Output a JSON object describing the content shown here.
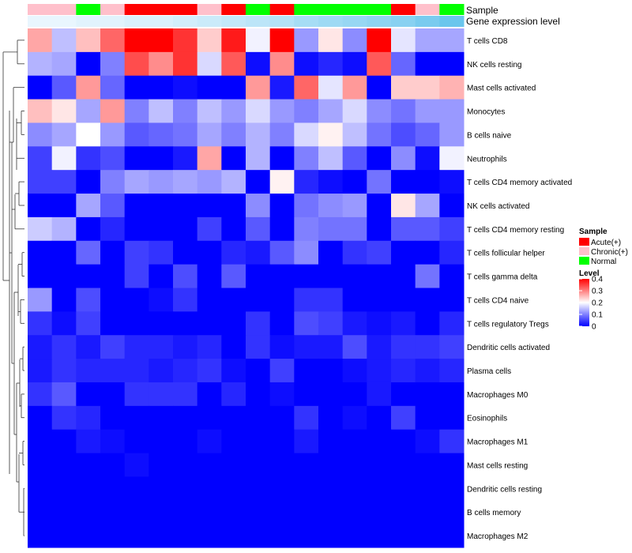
{
  "chart_data": {
    "type": "heatmap",
    "annotations": {
      "sample_label": "Sample",
      "expression_label": "Gene expression level",
      "sample_groups": [
        "Chronic(+)",
        "Chronic(+)",
        "Normal",
        "Chronic(+)",
        "Acute(+)",
        "Acute(+)",
        "Acute(+)",
        "Chronic(+)",
        "Acute(+)",
        "Normal",
        "Acute(+)",
        "Normal",
        "Normal",
        "Normal",
        "Normal",
        "Acute(+)",
        "Chronic(+)",
        "Normal"
      ],
      "expression_levels": [
        0.05,
        0.05,
        0.1,
        0.1,
        0.15,
        0.15,
        0.2,
        0.25,
        0.3,
        0.35,
        0.4,
        0.5,
        0.55,
        0.6,
        0.65,
        0.7,
        0.8,
        0.9
      ]
    },
    "rows": [
      {
        "name": "T cells CD8",
        "values": [
          0.27,
          0.15,
          0.25,
          0.32,
          0.4,
          0.4,
          0.36,
          0.24,
          0.38,
          0.19,
          0.4,
          0.12,
          0.22,
          0.11,
          0.4,
          0.18,
          0.13,
          0.13
        ]
      },
      {
        "name": "NK cells resting",
        "values": [
          0.14,
          0.13,
          0.0,
          0.1,
          0.34,
          0.29,
          0.36,
          0.17,
          0.33,
          0.01,
          0.29,
          0.01,
          0.03,
          0.01,
          0.33,
          0.08,
          0.0,
          0.0
        ]
      },
      {
        "name": "Mast cells activated",
        "values": [
          0.0,
          0.07,
          0.28,
          0.08,
          0.0,
          0.0,
          0.01,
          0.0,
          0.0,
          0.28,
          0.02,
          0.32,
          0.18,
          0.28,
          0.0,
          0.24,
          0.24,
          0.26
        ]
      },
      {
        "name": "Monocytes",
        "values": [
          0.25,
          0.22,
          0.13,
          0.28,
          0.1,
          0.15,
          0.1,
          0.15,
          0.12,
          0.17,
          0.12,
          0.1,
          0.13,
          0.17,
          0.11,
          0.09,
          0.12,
          0.12
        ]
      },
      {
        "name": "B cells naive",
        "values": [
          0.11,
          0.13,
          0.2,
          0.12,
          0.07,
          0.08,
          0.09,
          0.13,
          0.1,
          0.14,
          0.1,
          0.17,
          0.21,
          0.15,
          0.09,
          0.06,
          0.08,
          0.12
        ]
      },
      {
        "name": "Neutrophils",
        "values": [
          0.05,
          0.19,
          0.04,
          0.06,
          0.0,
          0.0,
          0.02,
          0.27,
          0.0,
          0.14,
          0.0,
          0.1,
          0.15,
          0.07,
          0.0,
          0.11,
          0.01,
          0.19
        ]
      },
      {
        "name": "T cells CD4 memory activated",
        "values": [
          0.05,
          0.05,
          0.0,
          0.1,
          0.13,
          0.12,
          0.13,
          0.12,
          0.14,
          0.0,
          0.21,
          0.03,
          0.01,
          0.0,
          0.09,
          0.0,
          0.0,
          0.01
        ]
      },
      {
        "name": "NK cells activated",
        "values": [
          0.0,
          0.0,
          0.13,
          0.07,
          0.0,
          0.0,
          0.0,
          0.0,
          0.0,
          0.11,
          0.0,
          0.09,
          0.11,
          0.12,
          0.0,
          0.22,
          0.13,
          0.0
        ]
      },
      {
        "name": "T cells CD4 memory resting",
        "values": [
          0.16,
          0.14,
          0.0,
          0.03,
          0.0,
          0.0,
          0.0,
          0.05,
          0.0,
          0.07,
          0.0,
          0.1,
          0.09,
          0.09,
          0.0,
          0.07,
          0.07,
          0.05
        ]
      },
      {
        "name": "T cells follicular helper",
        "values": [
          0.0,
          0.0,
          0.08,
          0.0,
          0.05,
          0.04,
          0.0,
          0.0,
          0.03,
          0.02,
          0.07,
          0.11,
          0.0,
          0.04,
          0.05,
          0.0,
          0.0,
          0.03
        ]
      },
      {
        "name": "T cells gamma delta",
        "values": [
          0.0,
          0.0,
          0.0,
          0.0,
          0.05,
          0.0,
          0.06,
          0.0,
          0.07,
          0.0,
          0.0,
          0.0,
          0.0,
          0.0,
          0.0,
          0.0,
          0.09,
          0.0
        ]
      },
      {
        "name": "T cells CD4 naive",
        "values": [
          0.12,
          0.0,
          0.06,
          0.0,
          0.0,
          0.01,
          0.04,
          0.0,
          0.0,
          0.0,
          0.0,
          0.04,
          0.04,
          0.0,
          0.0,
          0.0,
          0.0,
          0.0
        ]
      },
      {
        "name": "T cells regulatory  Tregs",
        "values": [
          0.04,
          0.01,
          0.05,
          0.0,
          0.0,
          0.0,
          0.0,
          0.0,
          0.0,
          0.04,
          0.0,
          0.06,
          0.05,
          0.02,
          0.01,
          0.02,
          0.0,
          0.03
        ]
      },
      {
        "name": "Dendritic cells activated",
        "values": [
          0.02,
          0.04,
          0.02,
          0.05,
          0.03,
          0.03,
          0.02,
          0.03,
          0.0,
          0.04,
          0.01,
          0.02,
          0.02,
          0.06,
          0.02,
          0.04,
          0.04,
          0.05
        ]
      },
      {
        "name": "Plasma cells",
        "values": [
          0.02,
          0.04,
          0.03,
          0.03,
          0.03,
          0.02,
          0.03,
          0.04,
          0.01,
          0.0,
          0.05,
          0.0,
          0.0,
          0.01,
          0.02,
          0.03,
          0.02,
          0.03
        ]
      },
      {
        "name": "Macrophages M0",
        "values": [
          0.04,
          0.07,
          0.0,
          0.0,
          0.04,
          0.04,
          0.04,
          0.0,
          0.03,
          0.0,
          0.01,
          0.0,
          0.0,
          0.0,
          0.02,
          0.0,
          0.0,
          0.0
        ]
      },
      {
        "name": "Eosinophils",
        "values": [
          0.0,
          0.04,
          0.03,
          0.0,
          0.0,
          0.0,
          0.0,
          0.0,
          0.0,
          0.0,
          0.0,
          0.04,
          0.0,
          0.01,
          0.0,
          0.05,
          0.0,
          0.0
        ]
      },
      {
        "name": "Macrophages M1",
        "values": [
          0.0,
          0.0,
          0.02,
          0.01,
          0.0,
          0.0,
          0.0,
          0.01,
          0.0,
          0.0,
          0.0,
          0.02,
          0.0,
          0.0,
          0.0,
          0.0,
          0.01,
          0.04
        ]
      },
      {
        "name": "Mast cells resting",
        "values": [
          0.0,
          0.0,
          0.0,
          0.0,
          0.01,
          0.0,
          0.0,
          0.0,
          0.0,
          0.0,
          0.0,
          0.0,
          0.0,
          0.0,
          0.0,
          0.0,
          0.0,
          0.0
        ]
      },
      {
        "name": "Dendritic cells resting",
        "values": [
          0.0,
          0.0,
          0.0,
          0.0,
          0.0,
          0.0,
          0.0,
          0.0,
          0.0,
          0.0,
          0.0,
          0.0,
          0.0,
          0.0,
          0.0,
          0.0,
          0.0,
          0.0
        ]
      },
      {
        "name": "B cells memory",
        "values": [
          0.0,
          0.0,
          0.0,
          0.0,
          0.0,
          0.0,
          0.0,
          0.0,
          0.0,
          0.0,
          0.0,
          0.0,
          0.0,
          0.0,
          0.0,
          0.0,
          0.0,
          0.0
        ]
      },
      {
        "name": "Macrophages M2",
        "values": [
          0.0,
          0.0,
          0.0,
          0.0,
          0.0,
          0.0,
          0.0,
          0.0,
          0.0,
          0.0,
          0.0,
          0.0,
          0.0,
          0.0,
          0.0,
          0.0,
          0.0,
          0.0
        ]
      }
    ],
    "color_range": [
      0,
      0.4
    ],
    "legends": {
      "sample": {
        "title": "Sample",
        "items": [
          {
            "label": "Acute(+)",
            "color": "#ff0000"
          },
          {
            "label": "Chronic(+)",
            "color": "#ffc0cb"
          },
          {
            "label": "Normal",
            "color": "#00ff00"
          }
        ]
      },
      "level": {
        "title": "Level",
        "ticks": [
          "0.4",
          "0.3",
          "0.2",
          "0.1",
          "0"
        ],
        "colors": {
          "low": "#0000ff",
          "mid": "#ffffff",
          "high": "#ff0000"
        }
      }
    }
  }
}
